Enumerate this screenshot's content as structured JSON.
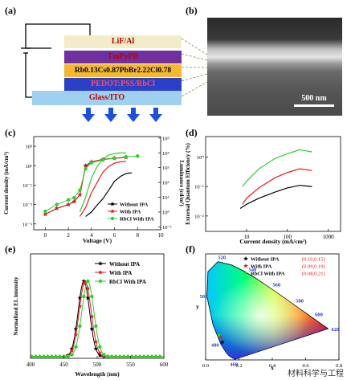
{
  "panels": {
    "a": "(a)",
    "b": "(b)",
    "c": "(c)",
    "d": "(d)",
    "e": "(e)",
    "f": "(f)"
  },
  "device": {
    "layers": [
      {
        "label": "LiF/Al",
        "color": "#f3ecc8",
        "text_color": "#b00000"
      },
      {
        "label": "TmPyPB",
        "color": "#7030a0",
        "text_color": "#c00000"
      },
      {
        "label": "Rb0.13Cs0.87PbBr2.22Cl0.78",
        "color": "#f5b830",
        "text_color": "#000000"
      },
      {
        "label": "PEDOT:PSS/RbCl",
        "color": "#2b3fc9",
        "text_color": "#ff5050"
      },
      {
        "label": "Glass/ITO",
        "color": "#9fd0ef",
        "text_color": "#c00000"
      }
    ],
    "arrow_color": "#1a4fe0"
  },
  "sem": {
    "scale_label": "500 nm"
  },
  "watermark": "材料科学与工程",
  "chart_data": [
    {
      "panel": "c",
      "type": "line",
      "xlabel": "Voltage (V)",
      "ylabel_left": "Current density (mA/cm²)",
      "ylabel_right": "Luminance (cd/m²)",
      "xlim": [
        -1,
        10
      ],
      "x_ticks": [
        "0",
        "2",
        "4",
        "6",
        "8",
        "10"
      ],
      "y_ticks_left": [
        "10⁻⁵",
        "10⁻³",
        "10⁻¹",
        "10¹",
        "10³"
      ],
      "y_ticks_right": [
        "10⁻¹",
        "10⁰",
        "10¹",
        "10²",
        "10³",
        "10⁴",
        "10⁵"
      ],
      "legend": [
        "Without IPA",
        "With IPA",
        "RbCl With IPA"
      ],
      "series": [
        {
          "name": "Without IPA",
          "color": "#000000",
          "marker": "star",
          "current": {
            "x": [
              0,
              1,
              2,
              2.5,
              3,
              3.5,
              4,
              5,
              6,
              7
            ],
            "y": [
              0.0001,
              0.0004,
              0.001,
              0.002,
              0.01,
              10,
              25,
              45,
              60,
              80
            ]
          },
          "luminance": {
            "x": [
              3.5,
              4,
              4.5,
              5,
              5.5,
              6,
              6.5,
              7,
              7.5
            ],
            "y": [
              0.5,
              1,
              3,
              8,
              30,
              120,
              250,
              400,
              450
            ]
          }
        },
        {
          "name": "With IPA",
          "color": "#e8191e",
          "marker": "star",
          "current": {
            "x": [
              0,
              1,
              2,
              2.5,
              3,
              3.5,
              4,
              5,
              6,
              7
            ],
            "y": [
              0.0001,
              0.0004,
              0.001,
              0.002,
              0.01,
              8,
              25,
              45,
              55,
              70
            ]
          },
          "luminance": {
            "x": [
              3,
              3.5,
              4,
              4.5,
              5,
              5.5,
              6,
              6.5,
              7
            ],
            "y": [
              0.5,
              2,
              20,
              100,
              500,
              1200,
              2000,
              2500,
              2600
            ]
          }
        },
        {
          "name": "RbCl With IPA",
          "color": "#2dcf2d",
          "marker": "circle",
          "current": {
            "x": [
              0,
              1,
              2,
              2.5,
              3,
              3.5,
              4,
              5,
              6,
              7,
              8
            ],
            "y": [
              0.0002,
              0.001,
              0.003,
              0.005,
              0.03,
              5,
              20,
              40,
              60,
              80,
              100
            ]
          },
          "luminance": {
            "x": [
              3,
              3.5,
              4,
              4.5,
              5,
              5.5,
              6,
              6.5,
              7
            ],
            "y": [
              1,
              10,
              200,
              1200,
              4000,
              7000,
              9000,
              10000,
              10000
            ]
          }
        }
      ]
    },
    {
      "panel": "d",
      "type": "line",
      "xlabel": "Current density (mA/cm²)",
      "ylabel": "External Quantum Efficiency (%)",
      "xscale": "log",
      "yscale": "log",
      "xlim": [
        1,
        2000
      ],
      "ylim": [
        0.003,
        5
      ],
      "x_ticks": [
        "10",
        "100",
        "1000"
      ],
      "y_ticks": [
        "10⁻²",
        "10⁻¹",
        "10⁰"
      ],
      "series": [
        {
          "name": "Without IPA",
          "color": "#000000",
          "x": [
            7,
            10,
            20,
            50,
            100,
            200,
            400
          ],
          "y": [
            0.018,
            0.025,
            0.04,
            0.065,
            0.09,
            0.11,
            0.1
          ]
        },
        {
          "name": "With IPA",
          "color": "#e8191e",
          "x": [
            8,
            10,
            20,
            50,
            100,
            200,
            400
          ],
          "y": [
            0.025,
            0.04,
            0.09,
            0.2,
            0.3,
            0.4,
            0.35
          ]
        },
        {
          "name": "RbCl With IPA",
          "color": "#2dcf2d",
          "x": [
            8,
            10,
            20,
            50,
            100,
            200,
            400
          ],
          "y": [
            0.1,
            0.15,
            0.4,
            0.9,
            1.3,
            1.8,
            1.5
          ]
        }
      ]
    },
    {
      "panel": "e",
      "type": "line",
      "xlabel": "Wavelength (nm)",
      "ylabel": "Normalized EL intensity",
      "xlim": [
        400,
        600
      ],
      "x_ticks": [
        "400",
        "450",
        "500",
        "550",
        "600"
      ],
      "legend": [
        "Without IPA",
        "With IPA",
        "RbCl With IPA"
      ],
      "series": [
        {
          "name": "Without IPA",
          "color": "#000000",
          "peak": 480,
          "fwhm": 20
        },
        {
          "name": "With IPA",
          "color": "#e8191e",
          "peak": 482,
          "fwhm": 21
        },
        {
          "name": "RbCl With IPA",
          "color": "#2dcf2d",
          "peak": 486,
          "fwhm": 21
        }
      ]
    },
    {
      "panel": "f",
      "type": "scatter",
      "xlabel": "x",
      "ylabel": "y",
      "xlim": [
        0,
        0.8
      ],
      "ylim": [
        0,
        0.9
      ],
      "x_ticks": [
        "0.0",
        "0.2",
        "0.4",
        "0.6",
        "0.8"
      ],
      "wavelength_labels": [
        "520",
        "540",
        "560",
        "580",
        "600",
        "620",
        "500",
        "480",
        "460"
      ],
      "series": [
        {
          "name": "Without IPA",
          "coords": "(0.10,0.15)",
          "color": "#000000",
          "x": 0.1,
          "y": 0.15
        },
        {
          "name": "With IPA",
          "coords": "(0.09,0.19)",
          "color": "#e8191e",
          "x": 0.09,
          "y": 0.19
        },
        {
          "name": "RbCl With IPA",
          "coords": "(0.08,0.21)",
          "color": "#2dcf2d",
          "x": 0.08,
          "y": 0.21
        }
      ]
    }
  ]
}
